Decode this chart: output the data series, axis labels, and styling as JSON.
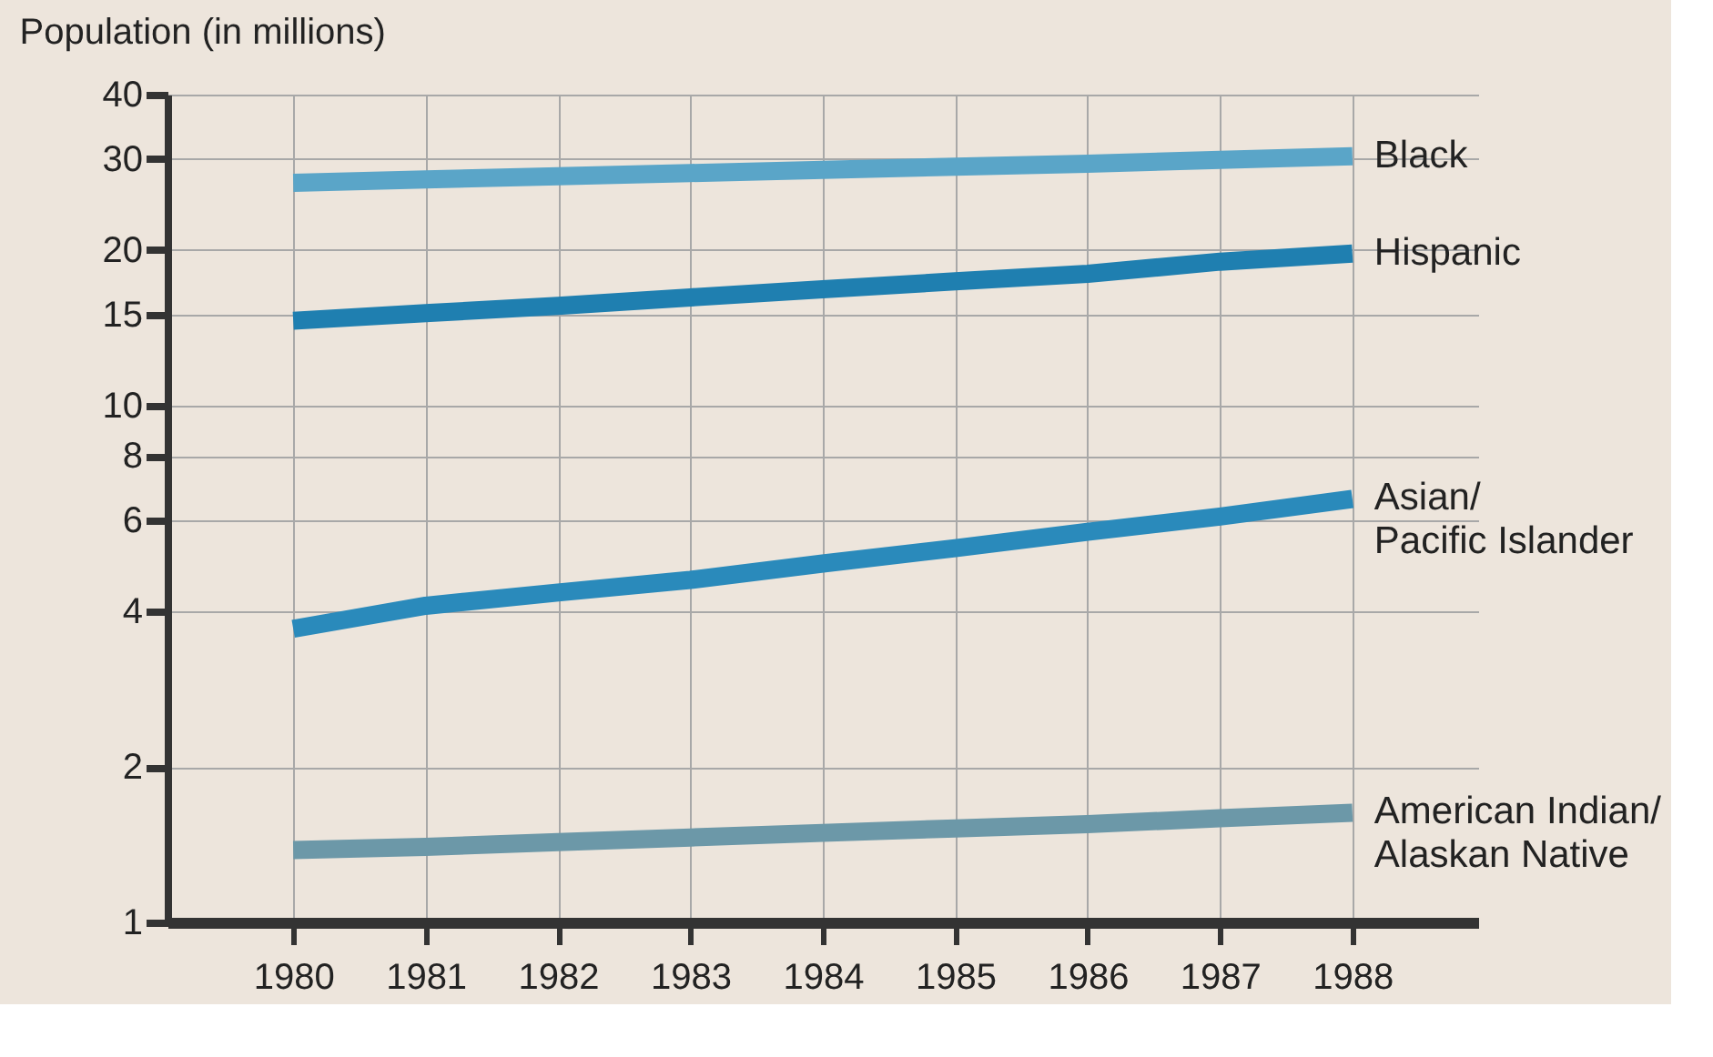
{
  "chart_data": {
    "type": "line",
    "title": "Population (in millions)",
    "x": [
      1980,
      1981,
      1982,
      1983,
      1984,
      1985,
      1986,
      1987,
      1988
    ],
    "series": [
      {
        "name": "Black",
        "color": "#5aa5c8",
        "values": [
          27,
          27.4,
          27.8,
          28.2,
          28.6,
          29,
          29.4,
          29.9,
          30.4
        ]
      },
      {
        "name": "Hispanic",
        "color": "#1f7fb0",
        "values": [
          14.6,
          15.1,
          15.6,
          16.2,
          16.8,
          17.4,
          18.0,
          19.0,
          19.7
        ]
      },
      {
        "name": "Asian/\nPacific Islander",
        "color": "#2a8abb",
        "values": [
          3.7,
          4.1,
          4.35,
          4.6,
          4.95,
          5.3,
          5.7,
          6.1,
          6.6
        ]
      },
      {
        "name": "American Indian/\nAlaskan Native",
        "color": "#6c98a8",
        "values": [
          1.38,
          1.4,
          1.43,
          1.46,
          1.49,
          1.52,
          1.55,
          1.59,
          1.63
        ]
      }
    ],
    "xlim": [
      1979.05,
      1988.95
    ],
    "xticks": [
      1980,
      1981,
      1982,
      1983,
      1984,
      1985,
      1986,
      1987,
      1988
    ],
    "ylim": [
      1,
      40
    ],
    "yticks": [
      1,
      2,
      4,
      6,
      8,
      10,
      15,
      20,
      30,
      40
    ],
    "log": true,
    "grid": true,
    "legend": false,
    "marker": "none",
    "line_style": "solid"
  }
}
